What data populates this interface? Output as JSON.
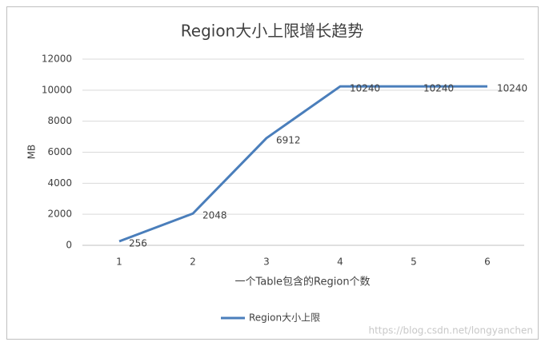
{
  "chart_data": {
    "type": "line",
    "title": "Region大小上限增长趋势",
    "x_label": "一个Table包含的Region个数",
    "y_label": "MB",
    "categories": [
      "1",
      "2",
      "3",
      "4",
      "5",
      "6"
    ],
    "series": [
      {
        "name": "Region大小上限",
        "color": "#4a7ebb",
        "values": [
          256,
          2048,
          6912,
          10240,
          10240,
          10240
        ]
      }
    ],
    "ylim": [
      0,
      12000
    ],
    "yticks": [
      0,
      2000,
      4000,
      6000,
      8000,
      10000,
      12000
    ],
    "grid": true,
    "legend": "bottom",
    "watermark": "https://blog.csdn.net/longyanchen"
  }
}
